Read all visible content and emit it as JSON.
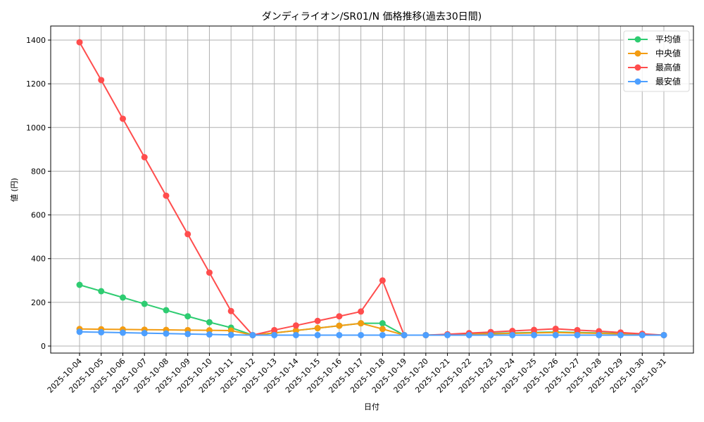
{
  "chart_data": {
    "type": "line",
    "title": "ダンディライオン/SR01/N 価格推移(過去30日間)",
    "xlabel": "日付",
    "ylabel": "値 (円)",
    "ylim": [
      -30,
      1460
    ],
    "yticks": [
      0,
      200,
      400,
      600,
      800,
      1000,
      1200,
      1400
    ],
    "grid": true,
    "legend_position": "upper right",
    "categories": [
      "2025-10-04",
      "2025-10-05",
      "2025-10-06",
      "2025-10-07",
      "2025-10-08",
      "2025-10-09",
      "2025-10-10",
      "2025-10-11",
      "2025-10-12",
      "2025-10-13",
      "2025-10-14",
      "2025-10-15",
      "2025-10-16",
      "2025-10-17",
      "2025-10-18",
      "2025-10-19",
      "2025-10-20",
      "2025-10-21",
      "2025-10-22",
      "2025-10-23",
      "2025-10-24",
      "2025-10-25",
      "2025-10-26",
      "2025-10-27",
      "2025-10-28",
      "2025-10-29",
      "2025-10-30",
      "2025-10-31"
    ],
    "series": [
      {
        "name": "平均値",
        "color": "#2ecc71",
        "values": [
          280,
          251,
          222,
          193,
          164,
          136,
          109,
          84,
          50,
          60,
          71,
          82,
          93,
          104,
          104,
          50,
          50,
          52,
          55,
          58,
          60,
          62,
          64,
          62,
          60,
          57,
          54,
          50
        ]
      },
      {
        "name": "中央値",
        "color": "#f39c12",
        "values": [
          78,
          77,
          76,
          75,
          74,
          73,
          72,
          71,
          50,
          60,
          71,
          82,
          93,
          104,
          78,
          50,
          50,
          52,
          54,
          56,
          58,
          60,
          62,
          60,
          58,
          56,
          53,
          50
        ]
      },
      {
        "name": "最高値",
        "color": "#ff4d4d",
        "values": [
          1390,
          1217,
          1040,
          864,
          688,
          512,
          336,
          160,
          50,
          73,
          94,
          115,
          136,
          158,
          300,
          50,
          50,
          54,
          59,
          64,
          69,
          74,
          79,
          73,
          68,
          62,
          56,
          50
        ]
      },
      {
        "name": "最安値",
        "color": "#4d9fff",
        "values": [
          65,
          63,
          61,
          59,
          57,
          55,
          53,
          51,
          50,
          50,
          50,
          50,
          50,
          50,
          50,
          50,
          50,
          50,
          50,
          50,
          50,
          50,
          50,
          50,
          50,
          50,
          50,
          50
        ]
      }
    ]
  }
}
